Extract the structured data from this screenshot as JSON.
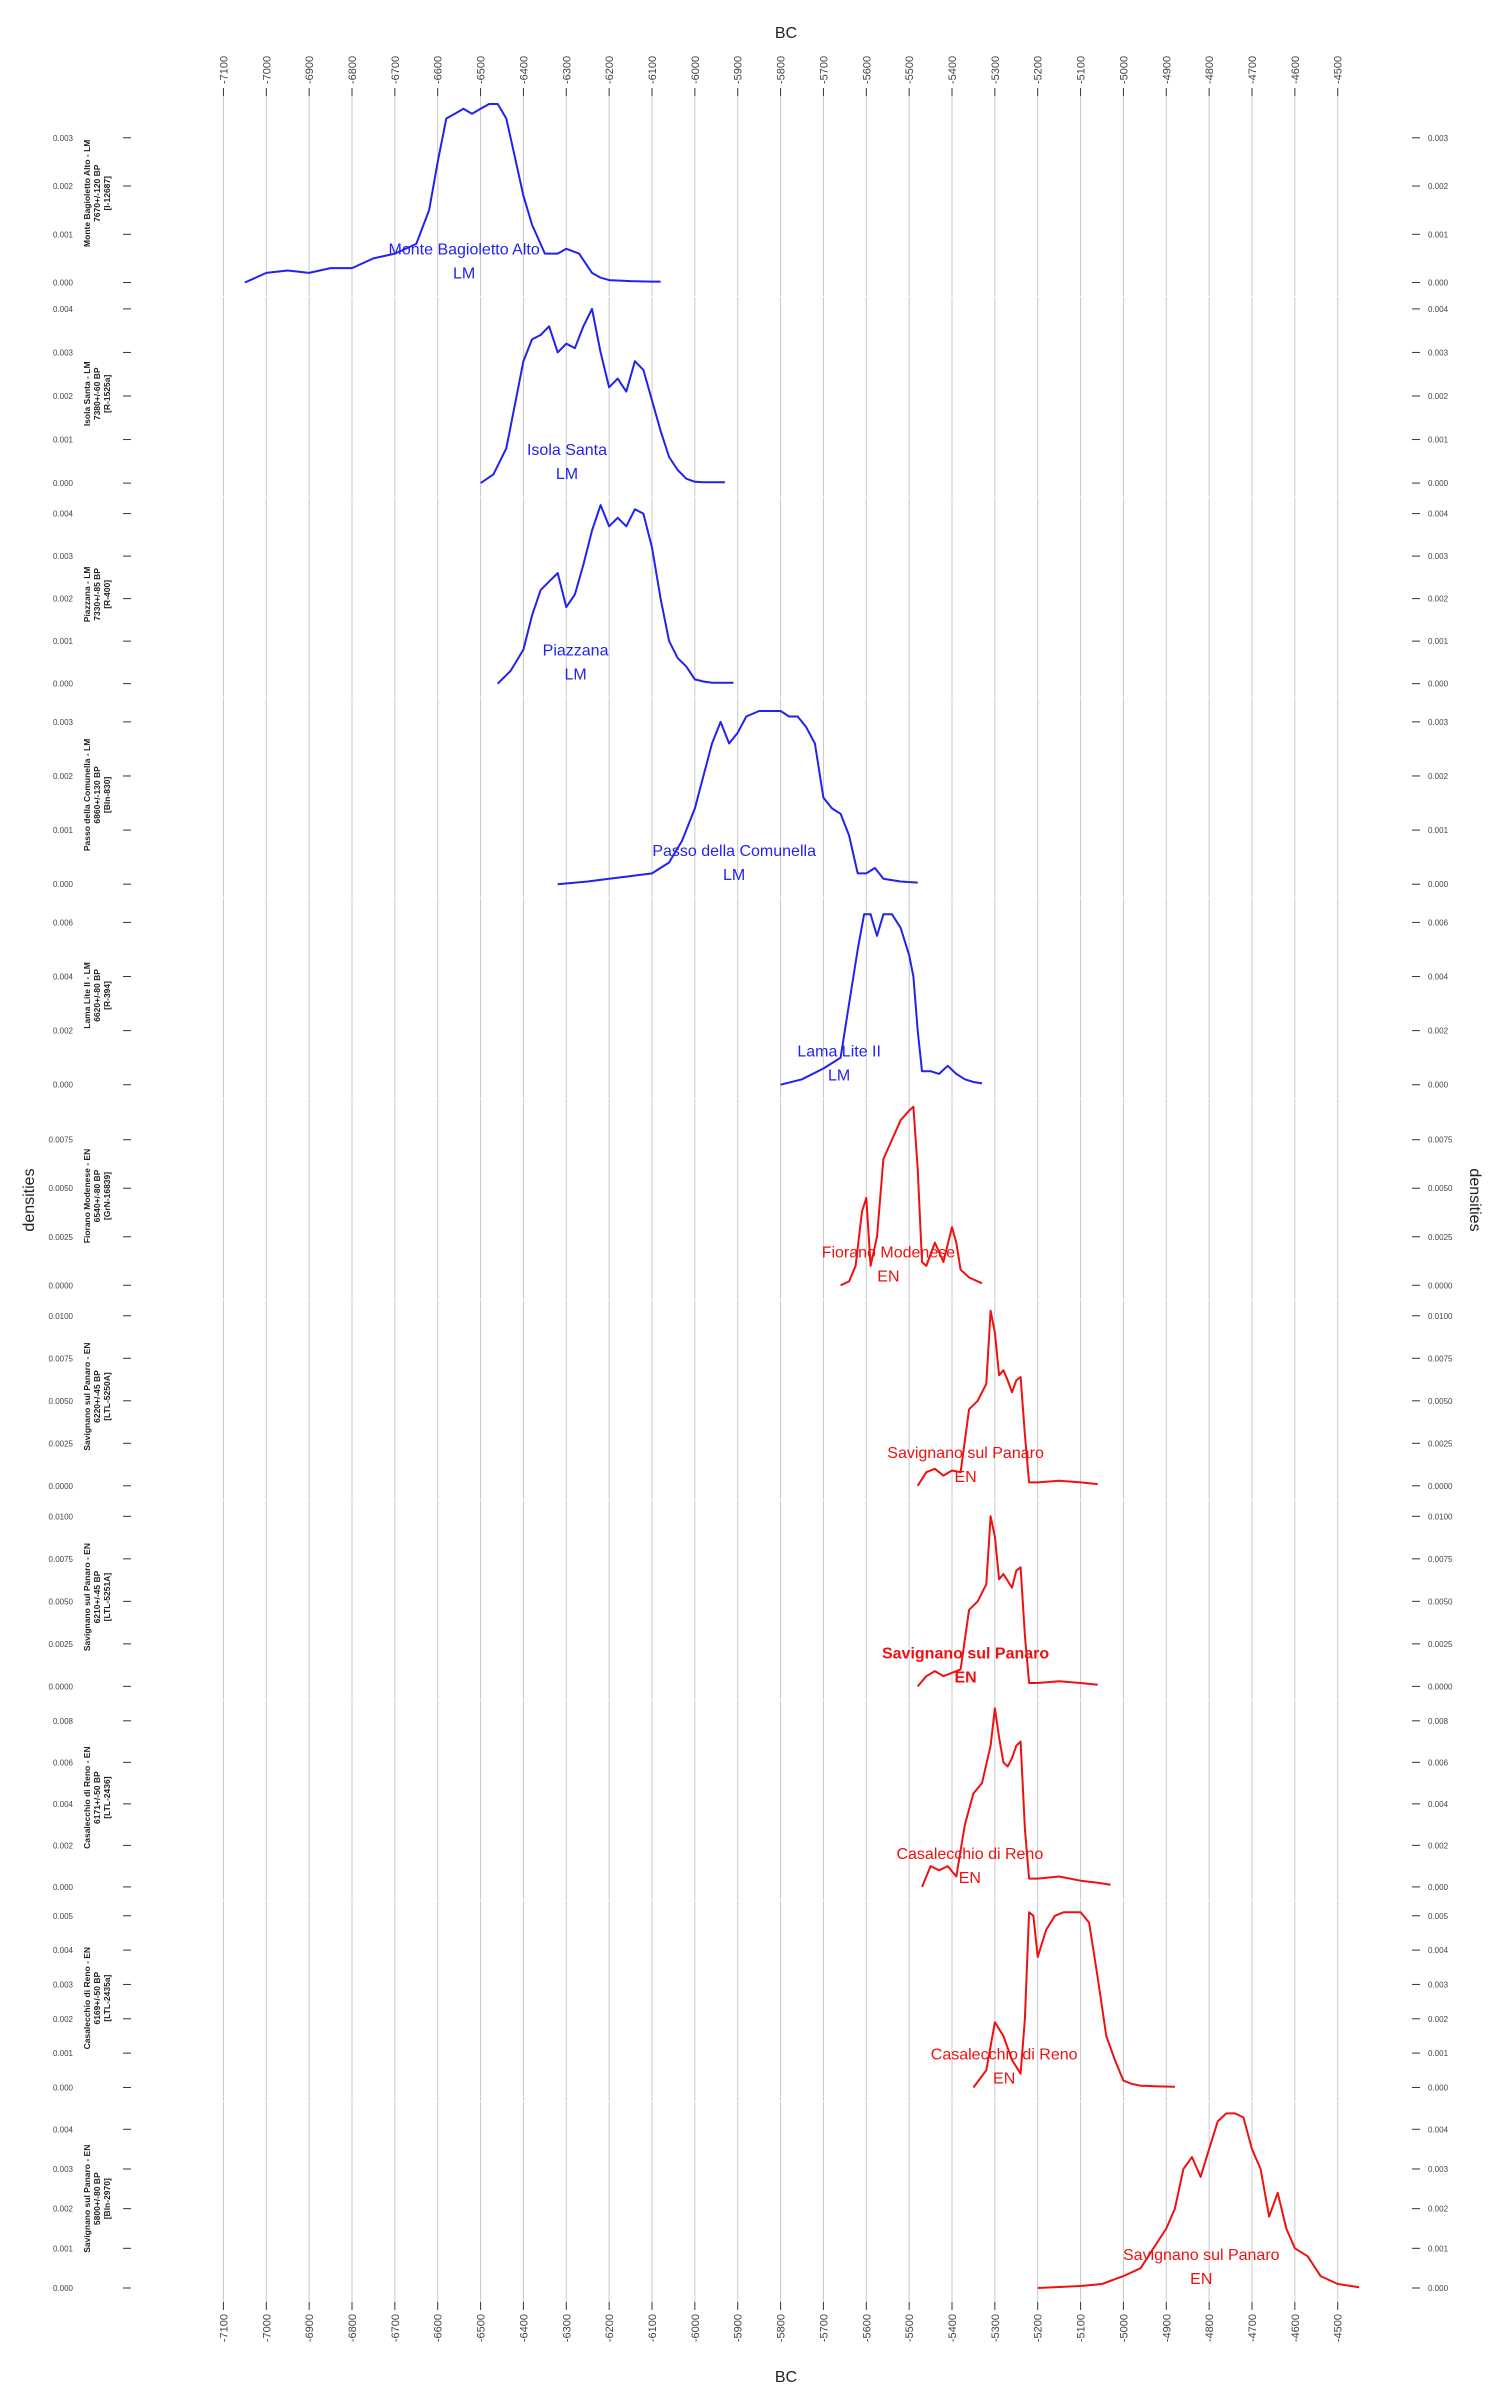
{
  "page": {
    "x_axis_title_top": "BC",
    "x_axis_title_bottom": "BC",
    "y_axis_title_left": "densities",
    "y_axis_title_right": "densities"
  },
  "colors": {
    "LM": "#2222ee",
    "EN": "#ee1111",
    "grid": "#c8c8c8",
    "axis": "#333333"
  },
  "chart_data": {
    "type": "line",
    "x_axis": {
      "ticks": [
        -7100,
        -7000,
        -6900,
        -6800,
        -6700,
        -6600,
        -6500,
        -6400,
        -6300,
        -6200,
        -6100,
        -6000,
        -5900,
        -5800,
        -5700,
        -5600,
        -5500,
        -5400,
        -5300,
        -5200,
        -5100,
        -5000,
        -4900,
        -4800,
        -4700,
        -4600,
        -4500
      ],
      "range": [
        -7150,
        -4420
      ]
    },
    "panels": [
      {
        "side_label": [
          "Monte Bagioletto Alto - LM",
          "7670+/-120 BP",
          "[I-12687]"
        ],
        "inline_label": [
          "Monte Bagioletto Alto",
          "LM"
        ],
        "group": "LM",
        "bold_label": false,
        "y_ticks": [
          "0.000",
          "0.001",
          "0.002",
          "0.003"
        ],
        "y_max": 0.0037,
        "x": [
          -7050,
          -7000,
          -6950,
          -6900,
          -6850,
          -6800,
          -6750,
          -6700,
          -6650,
          -6620,
          -6600,
          -6580,
          -6560,
          -6540,
          -6520,
          -6500,
          -6480,
          -6460,
          -6440,
          -6420,
          -6400,
          -6380,
          -6350,
          -6320,
          -6300,
          -6270,
          -6240,
          -6220,
          -6200,
          -6150,
          -6100,
          -6080
        ],
        "y": [
          0.0,
          0.0002,
          0.00025,
          0.0002,
          0.0003,
          0.0003,
          0.0005,
          0.0006,
          0.0008,
          0.0015,
          0.0025,
          0.0034,
          0.0035,
          0.0036,
          0.0035,
          0.0036,
          0.0037,
          0.0037,
          0.0034,
          0.0026,
          0.0018,
          0.0012,
          0.0006,
          0.0006,
          0.0007,
          0.0006,
          0.0002,
          0.0001,
          5e-05,
          3e-05,
          2e-05,
          2e-05
        ]
      },
      {
        "side_label": [
          "Isola Santa - LM",
          "7380+/-60 BP",
          "[R-1525a]"
        ],
        "inline_label": [
          "Isola Santa",
          "LM"
        ],
        "group": "LM",
        "bold_label": false,
        "y_ticks": [
          "0.000",
          "0.001",
          "0.002",
          "0.003",
          "0.004"
        ],
        "y_max": 0.0041,
        "x": [
          -6500,
          -6470,
          -6440,
          -6420,
          -6400,
          -6380,
          -6360,
          -6340,
          -6320,
          -6300,
          -6280,
          -6260,
          -6240,
          -6220,
          -6200,
          -6180,
          -6160,
          -6140,
          -6120,
          -6100,
          -6080,
          -6060,
          -6040,
          -6020,
          -6000,
          -5980,
          -5950,
          -5930
        ],
        "y": [
          0.0,
          0.0002,
          0.0008,
          0.0018,
          0.0028,
          0.0033,
          0.0034,
          0.0036,
          0.003,
          0.0032,
          0.0031,
          0.0036,
          0.004,
          0.003,
          0.0022,
          0.0024,
          0.0021,
          0.0028,
          0.0026,
          0.0019,
          0.0012,
          0.0006,
          0.0003,
          0.0001,
          3e-05,
          2e-05,
          2e-05,
          2e-05
        ]
      },
      {
        "side_label": [
          "Piazzana - LM",
          "7330+/-85 BP",
          "[R-400]"
        ],
        "inline_label": [
          "Piazzana",
          "LM"
        ],
        "group": "LM",
        "bold_label": false,
        "y_ticks": [
          "0.000",
          "0.001",
          "0.002",
          "0.003",
          "0.004"
        ],
        "y_max": 0.0042,
        "x": [
          -6460,
          -6430,
          -6400,
          -6380,
          -6360,
          -6340,
          -6320,
          -6300,
          -6280,
          -6260,
          -6240,
          -6220,
          -6200,
          -6180,
          -6160,
          -6140,
          -6120,
          -6100,
          -6080,
          -6060,
          -6040,
          -6020,
          -6000,
          -5980,
          -5960,
          -5940,
          -5910
        ],
        "y": [
          0.0,
          0.0003,
          0.0008,
          0.0016,
          0.0022,
          0.0024,
          0.0026,
          0.0018,
          0.0021,
          0.0028,
          0.0036,
          0.0042,
          0.0037,
          0.0039,
          0.0037,
          0.0041,
          0.004,
          0.0032,
          0.002,
          0.001,
          0.0006,
          0.0004,
          0.0001,
          5e-05,
          2e-05,
          2e-05,
          2e-05
        ]
      },
      {
        "side_label": [
          "Passo della Comunella - LM",
          "6860+/-130 BP",
          "[Bln-830]"
        ],
        "inline_label": [
          "Passo della Comunella",
          "LM"
        ],
        "group": "LM",
        "bold_label": false,
        "y_ticks": [
          "0.000",
          "0.001",
          "0.002",
          "0.003"
        ],
        "y_max": 0.0033,
        "x": [
          -6320,
          -6250,
          -6200,
          -6150,
          -6100,
          -6060,
          -6030,
          -6000,
          -5980,
          -5960,
          -5940,
          -5920,
          -5900,
          -5880,
          -5850,
          -5820,
          -5800,
          -5780,
          -5760,
          -5740,
          -5720,
          -5700,
          -5680,
          -5660,
          -5640,
          -5620,
          -5600,
          -5580,
          -5560,
          -5520,
          -5480
        ],
        "y": [
          0.0,
          5e-05,
          0.0001,
          0.00015,
          0.0002,
          0.0004,
          0.0008,
          0.0014,
          0.002,
          0.0026,
          0.003,
          0.0026,
          0.0028,
          0.0031,
          0.0032,
          0.0032,
          0.0032,
          0.0031,
          0.0031,
          0.0029,
          0.0026,
          0.0016,
          0.0014,
          0.0013,
          0.0009,
          0.0002,
          0.0002,
          0.0003,
          0.0001,
          5e-05,
          3e-05
        ]
      },
      {
        "side_label": [
          "Lama Lite II - LM",
          "6620+/-80 BP",
          "[R-394]"
        ],
        "inline_label": [
          "Lama Lite II",
          "LM"
        ],
        "group": "LM",
        "bold_label": false,
        "y_ticks": [
          "0.000",
          "0.002",
          "0.004",
          "0.006"
        ],
        "y_max": 0.0066,
        "x": [
          -5800,
          -5750,
          -5700,
          -5680,
          -5660,
          -5640,
          -5620,
          -5605,
          -5590,
          -5575,
          -5560,
          -5540,
          -5520,
          -5500,
          -5490,
          -5480,
          -5470,
          -5450,
          -5430,
          -5410,
          -5390,
          -5370,
          -5350,
          -5330
        ],
        "y": [
          0.0,
          0.0002,
          0.0006,
          0.0008,
          0.001,
          0.003,
          0.005,
          0.0063,
          0.0063,
          0.0055,
          0.0063,
          0.0063,
          0.0058,
          0.0048,
          0.004,
          0.002,
          0.0005,
          0.0005,
          0.0004,
          0.0007,
          0.0004,
          0.0002,
          0.0001,
          5e-05
        ]
      },
      {
        "side_label": [
          "Fiorano Modenese - EN",
          "6540+/-80 BP",
          "[GrN-16839]"
        ],
        "inline_label": [
          "Fiorano Modenese",
          "EN"
        ],
        "group": "EN",
        "bold_label": false,
        "y_ticks": [
          "0.0000",
          "0.0025",
          "0.0050",
          "0.0075"
        ],
        "y_max": 0.0092,
        "x": [
          -5660,
          -5640,
          -5625,
          -5610,
          -5600,
          -5590,
          -5575,
          -5560,
          -5540,
          -5520,
          -5500,
          -5490,
          -5480,
          -5470,
          -5460,
          -5440,
          -5420,
          -5400,
          -5390,
          -5380,
          -5360,
          -5330
        ],
        "y": [
          0.0,
          0.0002,
          0.001,
          0.0038,
          0.0045,
          0.001,
          0.0025,
          0.0065,
          0.0075,
          0.0085,
          0.009,
          0.0092,
          0.006,
          0.0012,
          0.001,
          0.0022,
          0.0012,
          0.003,
          0.0022,
          0.0008,
          0.0004,
          0.0001
        ]
      },
      {
        "side_label": [
          "Savignano sul Panaro - EN",
          "6220+/-45 BP",
          "[LTL-5250A]"
        ],
        "inline_label": [
          "Savignano sul Panaro",
          "EN"
        ],
        "group": "EN",
        "bold_label": false,
        "y_ticks": [
          "0.0000",
          "0.0025",
          "0.0050",
          "0.0075",
          "0.0100"
        ],
        "y_max": 0.0105,
        "x": [
          -5480,
          -5460,
          -5440,
          -5420,
          -5400,
          -5380,
          -5360,
          -5340,
          -5320,
          -5310,
          -5300,
          -5290,
          -5280,
          -5270,
          -5260,
          -5250,
          -5240,
          -5230,
          -5220,
          -5200,
          -5150,
          -5100,
          -5060
        ],
        "y": [
          0.0,
          0.0008,
          0.001,
          0.0006,
          0.0009,
          0.0008,
          0.0045,
          0.005,
          0.006,
          0.0103,
          0.009,
          0.0065,
          0.0068,
          0.0062,
          0.0055,
          0.0062,
          0.0064,
          0.003,
          0.0002,
          0.0002,
          0.0003,
          0.0002,
          0.0001
        ]
      },
      {
        "side_label": [
          "Savignano sul Panaro - EN",
          "6210+/-45 BP",
          "[LTL-5251A]"
        ],
        "inline_label": [
          "Savignano sul Panaro",
          "EN"
        ],
        "group": "EN",
        "bold_label": true,
        "y_ticks": [
          "0.0000",
          "0.0025",
          "0.0050",
          "0.0075",
          "0.0100"
        ],
        "y_max": 0.0105,
        "x": [
          -5480,
          -5460,
          -5440,
          -5420,
          -5400,
          -5380,
          -5360,
          -5340,
          -5320,
          -5310,
          -5300,
          -5290,
          -5280,
          -5270,
          -5260,
          -5250,
          -5240,
          -5230,
          -5220,
          -5200,
          -5150,
          -5100,
          -5060
        ],
        "y": [
          0.0,
          0.0006,
          0.0009,
          0.0006,
          0.0008,
          0.001,
          0.0045,
          0.005,
          0.006,
          0.01,
          0.0088,
          0.0063,
          0.0066,
          0.0062,
          0.0058,
          0.0068,
          0.007,
          0.003,
          0.0002,
          0.0002,
          0.0003,
          0.0002,
          0.0001
        ]
      },
      {
        "side_label": [
          "Casalecchio di Reno - EN",
          "6171+/-50 BP",
          "[LTL-2436]"
        ],
        "inline_label": [
          "Casalecchio di Reno",
          "EN"
        ],
        "group": "EN",
        "bold_label": false,
        "y_ticks": [
          "0.000",
          "0.002",
          "0.004",
          "0.006",
          "0.008"
        ],
        "y_max": 0.0086,
        "x": [
          -5470,
          -5450,
          -5430,
          -5410,
          -5390,
          -5370,
          -5350,
          -5330,
          -5310,
          -5300,
          -5290,
          -5280,
          -5270,
          -5260,
          -5250,
          -5240,
          -5230,
          -5220,
          -5200,
          -5150,
          -5100,
          -5060,
          -5030
        ],
        "y": [
          0.0,
          0.001,
          0.0008,
          0.001,
          0.0005,
          0.003,
          0.0045,
          0.005,
          0.0068,
          0.0086,
          0.0072,
          0.006,
          0.0058,
          0.0062,
          0.0068,
          0.007,
          0.0028,
          0.0004,
          0.0004,
          0.0005,
          0.0003,
          0.0002,
          0.0001
        ]
      },
      {
        "side_label": [
          "Casalecchio di Reno - EN",
          "6169+/-50 BP",
          "[LTL-2435a]"
        ],
        "inline_label": [
          "Casalecchio di Reno",
          "EN"
        ],
        "group": "EN",
        "bold_label": false,
        "y_ticks": [
          "0.000",
          "0.001",
          "0.002",
          "0.003",
          "0.004",
          "0.005"
        ],
        "y_max": 0.0052,
        "x": [
          -5350,
          -5320,
          -5300,
          -5280,
          -5260,
          -5240,
          -5230,
          -5220,
          -5210,
          -5200,
          -5180,
          -5160,
          -5140,
          -5120,
          -5100,
          -5080,
          -5060,
          -5040,
          -5020,
          -5000,
          -4980,
          -4960,
          -4920,
          -4880
        ],
        "y": [
          0.0,
          0.0005,
          0.0019,
          0.0015,
          0.0008,
          0.0004,
          0.002,
          0.0051,
          0.005,
          0.0038,
          0.0046,
          0.005,
          0.0051,
          0.0051,
          0.0051,
          0.0048,
          0.0032,
          0.0015,
          0.0008,
          0.0002,
          0.0001,
          5e-05,
          3e-05,
          2e-05
        ]
      },
      {
        "side_label": [
          "Savignano sul Panaro - EN",
          "5800+/-80 BP",
          "[Bln-2970]"
        ],
        "inline_label": [
          "Savignano sul Panaro",
          "EN"
        ],
        "group": "EN",
        "bold_label": false,
        "y_ticks": [
          "0.000",
          "0.001",
          "0.002",
          "0.003",
          "0.004"
        ],
        "y_max": 0.0045,
        "x": [
          -5200,
          -5100,
          -5050,
          -5000,
          -4960,
          -4930,
          -4900,
          -4880,
          -4860,
          -4840,
          -4820,
          -4800,
          -4780,
          -4760,
          -4740,
          -4720,
          -4700,
          -4680,
          -4660,
          -4640,
          -4620,
          -4600,
          -4570,
          -4540,
          -4500,
          -4450
        ],
        "y": [
          0.0,
          5e-05,
          0.0001,
          0.0003,
          0.0005,
          0.001,
          0.0015,
          0.002,
          0.003,
          0.0033,
          0.0028,
          0.0035,
          0.0042,
          0.0044,
          0.0044,
          0.0043,
          0.0035,
          0.003,
          0.0018,
          0.0024,
          0.0015,
          0.001,
          0.0008,
          0.0003,
          0.0001,
          2e-05
        ]
      }
    ]
  }
}
